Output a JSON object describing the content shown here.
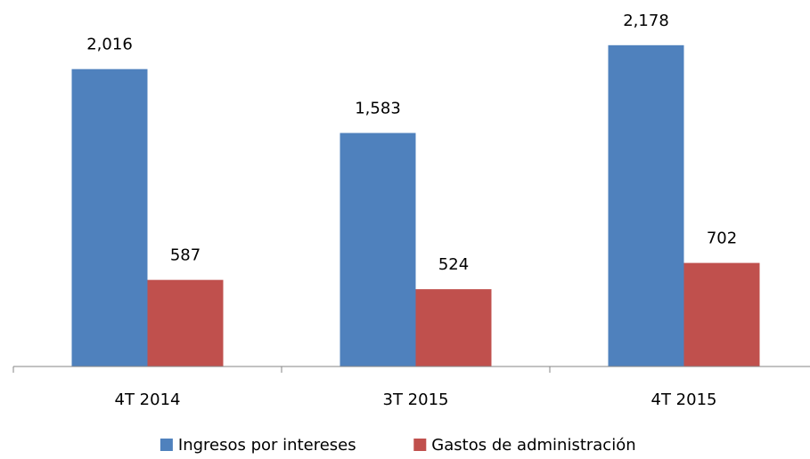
{
  "chart_data": {
    "type": "bar",
    "categories": [
      "4T 2014",
      "3T 2015",
      "4T 2015"
    ],
    "series": [
      {
        "name": "Ingresos por intereses",
        "color": "#4f81bd",
        "values": [
          2016,
          1583,
          2178
        ],
        "value_labels": [
          "2,016",
          "1,583",
          "2,178"
        ]
      },
      {
        "name": "Gastos de administración",
        "color": "#c0504d",
        "values": [
          587,
          524,
          702
        ]
      }
    ],
    "ylim": [
      0,
      2400
    ]
  }
}
